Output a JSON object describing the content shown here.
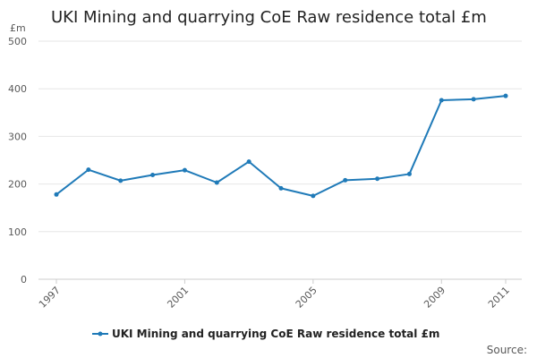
{
  "chart_data": {
    "type": "line",
    "title": "UKI Mining and quarrying CoE Raw residence total £m",
    "ylabel": "£m",
    "xlabel": "",
    "x": [
      1997,
      1998,
      1999,
      2000,
      2001,
      2002,
      2003,
      2004,
      2005,
      2006,
      2007,
      2008,
      2009,
      2010,
      2011
    ],
    "series": [
      {
        "name": "UKI Mining and quarrying CoE Raw residence total £m",
        "color": "#1f7ab8",
        "values": [
          178,
          230,
          207,
          219,
          229,
          203,
          247,
          191,
          175,
          208,
          211,
          221,
          376,
          378,
          385
        ]
      }
    ],
    "xlim": [
      1997,
      2011
    ],
    "ylim": [
      0,
      500
    ],
    "yticks": [
      0,
      100,
      200,
      300,
      400,
      500
    ],
    "xticks": [
      1997,
      2001,
      2005,
      2009,
      2011
    ],
    "grid": true,
    "legend": "bottom",
    "source": "Source:"
  }
}
